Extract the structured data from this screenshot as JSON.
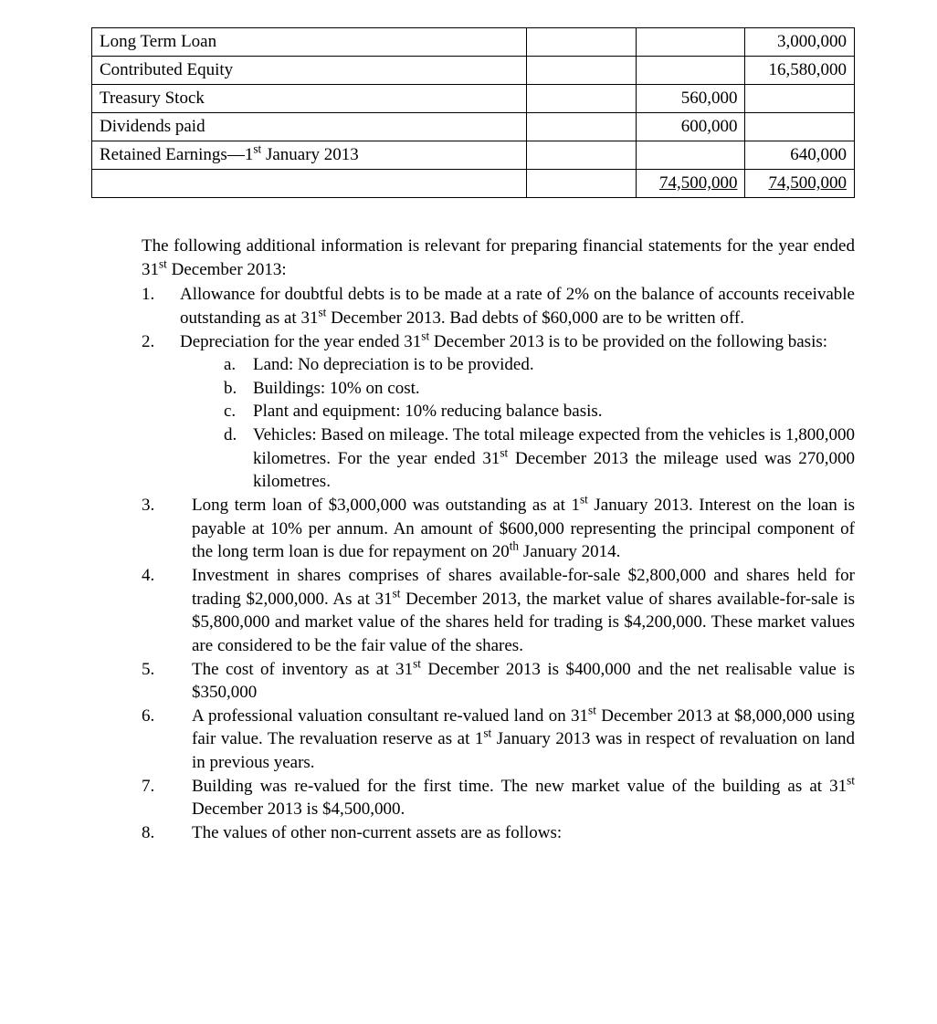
{
  "table": {
    "rows": [
      {
        "label": "Long Term Loan",
        "col1": "",
        "col2": "",
        "col3": "3,000,000"
      },
      {
        "label": "Contributed Equity",
        "col1": "",
        "col2": "",
        "col3": "16,580,000"
      },
      {
        "label": "Treasury Stock",
        "col1": "",
        "col2": "560,000",
        "col3": ""
      },
      {
        "label": "Dividends paid",
        "col1": "",
        "col2": "600,000",
        "col3": ""
      },
      {
        "label_html": "Retained Earnings—1<sup>st</sup> January 2013",
        "col1": "",
        "col2": "",
        "col3": "640,000"
      },
      {
        "label": "",
        "col1": "",
        "col2": "74,500,000",
        "col3": "74,500,000",
        "underline": true
      }
    ]
  },
  "intro_html": "The following additional information is relevant for preparing financial statements for the year ended 31<sup>st</sup> December 2013:",
  "items": [
    {
      "marker": "1.",
      "body_html": "Allowance for doubtful debts is to be made at a rate of 2% on the balance of accounts receivable outstanding as at 31<sup>st</sup> December 2013. Bad debts of $60,000 are to be written off."
    },
    {
      "marker": "2.",
      "body_html": "Depreciation for the year ended 31<sup>st</sup> December 2013 is to be provided on the following basis:",
      "subitems": [
        {
          "marker": "a.",
          "body_html": "Land: No depreciation is to be provided."
        },
        {
          "marker": "b.",
          "body_html": "Buildings: 10% on cost."
        },
        {
          "marker": "c.",
          "body_html": "Plant and equipment:  10% reducing balance basis."
        },
        {
          "marker": "d.",
          "body_html": "Vehicles: Based on mileage. The total mileage expected from the vehicles is 1,800,000 kilometres. For the year ended 31<sup>st</sup> December 2013 the mileage used was 270,000 kilometres."
        }
      ]
    }
  ],
  "items2": [
    {
      "marker": "3.",
      "body_html": "Long term loan of $3,000,000 was outstanding as at 1<sup>st</sup> January 2013. Interest on the loan is payable at 10% per annum. An amount of $600,000 representing the principal component of the long term loan is due for repayment on 20<sup>th</sup> January 2014."
    },
    {
      "marker": "4.",
      "body_html": "Investment in shares comprises of shares available-for-sale $2,800,000 and shares held for trading $2,000,000. As at 31<sup>st</sup> December 2013, the market value of shares available-for-sale is $5,800,000 and market value of the shares held for trading is $4,200,000. These market values are considered to be the fair value of the shares."
    },
    {
      "marker": "5.",
      "body_html": "The cost of inventory as at 31<sup>st</sup> December 2013 is $400,000 and the net realisable value is $350,000"
    },
    {
      "marker": "6.",
      "body_html": "A professional valuation consultant re-valued land on 31<sup>st</sup> December 2013 at $8,000,000 using fair value. The revaluation reserve as at 1<sup>st</sup> January 2013 was in respect of revaluation on land in previous years."
    },
    {
      "marker": "7.",
      "body_html": "Building was re-valued for the first time. The new market value of the building as at 31<sup>st</sup> December 2013 is $4,500,000."
    },
    {
      "marker": "8.",
      "body_html": "The values of other non-current assets are as follows:"
    }
  ]
}
